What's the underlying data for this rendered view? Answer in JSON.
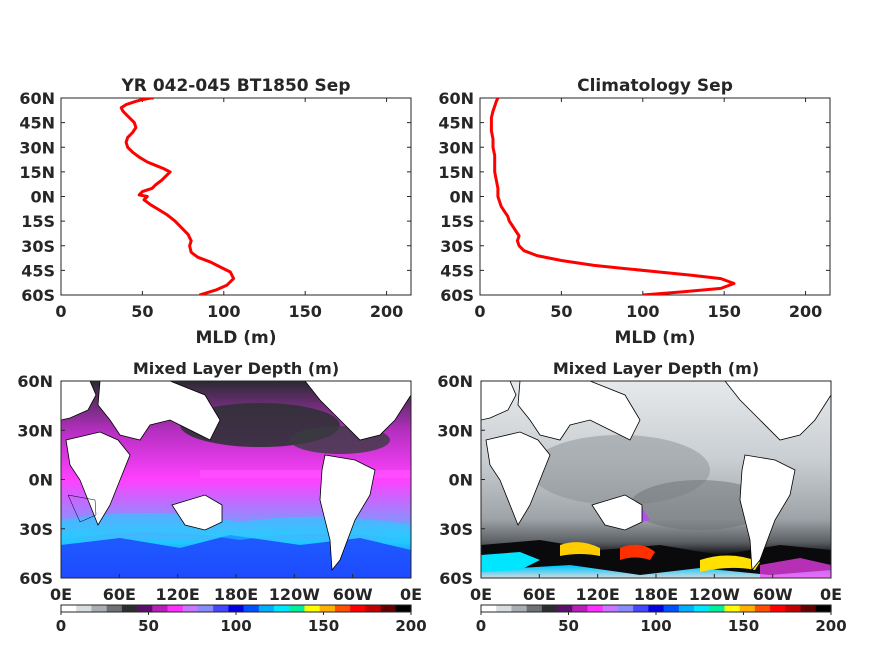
{
  "chart_data": [
    {
      "type": "line",
      "title": "YR 042-045 BT1850 Sep",
      "xlabel": "MLD (m)",
      "ylabel": "",
      "xlim": [
        0,
        215
      ],
      "ylim": [
        -60,
        60
      ],
      "x_ticks": [
        "0",
        "50",
        "100",
        "150",
        "200"
      ],
      "y_ticks": [
        "60N",
        "45N",
        "30N",
        "15N",
        "0N",
        "15S",
        "30S",
        "45S",
        "60S"
      ],
      "line_color": "#ff0000",
      "grid": false,
      "series": [
        {
          "x": [
            85,
            95,
            102,
            106,
            104,
            98,
            92,
            84,
            80,
            79,
            80,
            78,
            74,
            70,
            65,
            60,
            55,
            51,
            53,
            48,
            50,
            56,
            58,
            62,
            65,
            67,
            63,
            58,
            53,
            48,
            44,
            41,
            40,
            41,
            44,
            46,
            45,
            43,
            40,
            38,
            37,
            40,
            46,
            50,
            55,
            57
          ],
          "y": [
            -60,
            -57,
            -54,
            -50,
            -46,
            -43,
            -40,
            -37,
            -34,
            -30,
            -27,
            -23,
            -19,
            -15,
            -11,
            -8,
            -5,
            -2,
            0,
            1,
            3,
            5,
            7,
            10,
            13,
            15,
            17,
            19,
            21,
            24,
            27,
            30,
            33,
            36,
            39,
            42,
            45,
            47,
            50,
            52,
            54,
            56,
            58,
            59,
            60,
            60
          ]
        }
      ]
    },
    {
      "type": "line",
      "title": "Climatology Sep",
      "xlabel": "MLD (m)",
      "ylabel": "",
      "xlim": [
        0,
        215
      ],
      "ylim": [
        -60,
        60
      ],
      "x_ticks": [
        "0",
        "50",
        "100",
        "150",
        "200"
      ],
      "y_ticks": [
        "60N",
        "45N",
        "30N",
        "15N",
        "0N",
        "15S",
        "30S",
        "45S",
        "60S"
      ],
      "line_color": "#ff0000",
      "grid": false,
      "series": [
        {
          "x": [
            100,
            125,
            148,
            156,
            148,
            130,
            110,
            90,
            70,
            50,
            35,
            27,
            24,
            23,
            24,
            22,
            20,
            18,
            17,
            15,
            13,
            12,
            11,
            11,
            10,
            9,
            9,
            9,
            8,
            8,
            7,
            7,
            7,
            8,
            9,
            10,
            11
          ],
          "y": [
            -60,
            -58,
            -56,
            -53,
            -50,
            -48,
            -46,
            -44,
            -42,
            -39,
            -36,
            -33,
            -30,
            -27,
            -24,
            -21,
            -18,
            -15,
            -12,
            -9,
            -6,
            -3,
            0,
            5,
            10,
            15,
            20,
            25,
            30,
            35,
            40,
            44,
            48,
            52,
            55,
            58,
            60
          ]
        }
      ]
    },
    {
      "type": "heatmap",
      "title": "Mixed Layer Depth (m)",
      "x_ticks": [
        "0E",
        "60E",
        "120E",
        "180E",
        "120W",
        "60W",
        "0E"
      ],
      "y_ticks": [
        "60N",
        "30N",
        "0N",
        "30S",
        "60S"
      ],
      "xlim": [
        0,
        360
      ],
      "ylim": [
        -60,
        60
      ],
      "colorbar_ticks": [
        "0",
        "50",
        "100",
        "150",
        "200"
      ],
      "colorbar_range": [
        0,
        200
      ]
    },
    {
      "type": "heatmap",
      "title": "Mixed Layer Depth (m)",
      "x_ticks": [
        "0E",
        "60E",
        "120E",
        "180E",
        "120W",
        "60W",
        "0E"
      ],
      "y_ticks": [
        "60N",
        "30N",
        "0N",
        "30S",
        "60S"
      ],
      "xlim": [
        0,
        360
      ],
      "ylim": [
        -60,
        60
      ],
      "colorbar_ticks": [
        "0",
        "50",
        "100",
        "150",
        "200"
      ],
      "colorbar_range": [
        0,
        200
      ]
    }
  ],
  "colorbar_colors": [
    "#ffffff",
    "#d8dde0",
    "#a9aeb3",
    "#6e7276",
    "#2c2d30",
    "#5b0f6a",
    "#b720b8",
    "#ff30ff",
    "#c878ff",
    "#8a8aff",
    "#4646ff",
    "#0000e0",
    "#0050ff",
    "#00b0ff",
    "#00e8ff",
    "#00f0a0",
    "#ffff00",
    "#ffb000",
    "#ff5000",
    "#ff0000",
    "#c00000",
    "#600000",
    "#000000"
  ]
}
